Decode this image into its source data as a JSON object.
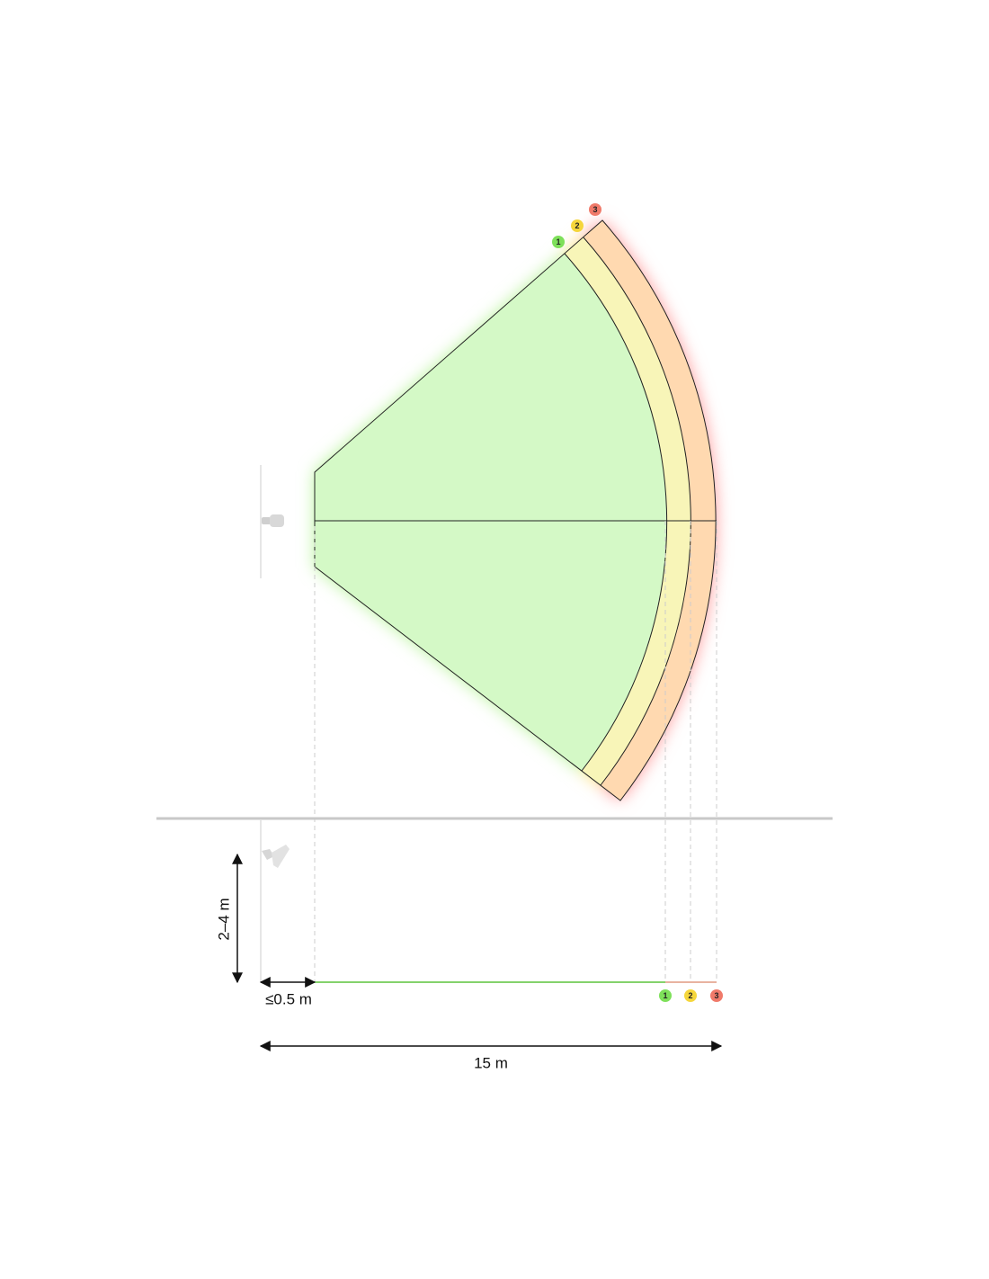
{
  "zones": [
    {
      "label": "1",
      "color": "#7ee05a"
    },
    {
      "label": "2",
      "color": "#f5d63c"
    },
    {
      "label": "3",
      "color": "#f07a6a"
    }
  ],
  "dimensions": {
    "mount_height": "2–4 m",
    "min_offset": "≤0.5 m",
    "range": "15 m"
  }
}
